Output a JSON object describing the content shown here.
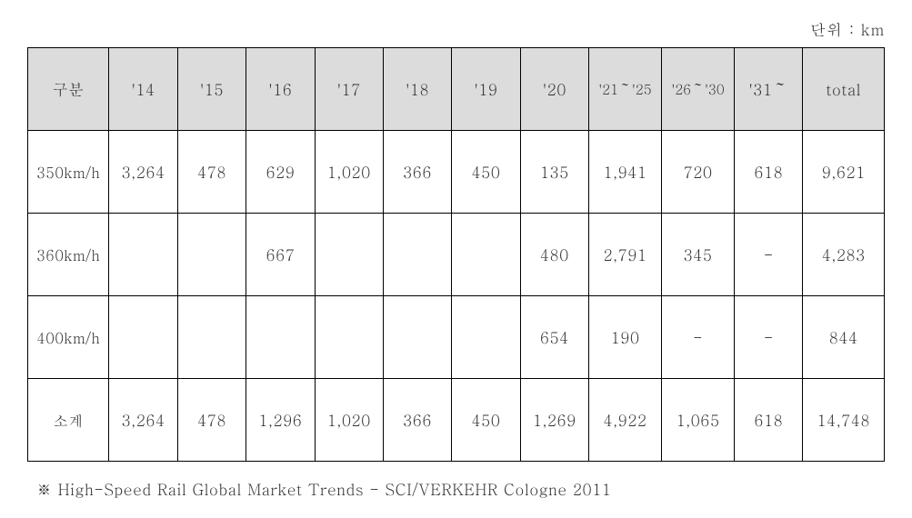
{
  "unit_label": "단위 : km",
  "table": {
    "columns": [
      "구분",
      "'14",
      "'15",
      "'16",
      "'17",
      "'18",
      "'19",
      "'20",
      "'21～'25",
      "'26～'30",
      "'31～",
      "total"
    ],
    "tight_cols": [
      8,
      9
    ],
    "col_widths_pct": [
      9.5,
      8.0,
      8.0,
      8.0,
      8.0,
      8.0,
      8.0,
      8.0,
      8.5,
      8.5,
      8.0,
      9.5
    ],
    "rows": [
      [
        "350km/h",
        "3,264",
        "478",
        "629",
        "1,020",
        "366",
        "450",
        "135",
        "1,941",
        "720",
        "618",
        "9,621"
      ],
      [
        "360km/h",
        "",
        "",
        "667",
        "",
        "",
        "",
        "480",
        "2,791",
        "345",
        "-",
        "4,283"
      ],
      [
        "400km/h",
        "",
        "",
        "",
        "",
        "",
        "",
        "654",
        "190",
        "-",
        "-",
        "844"
      ],
      [
        "소계",
        "3,264",
        "478",
        "1,296",
        "1,020",
        "366",
        "450",
        "1,269",
        "4,922",
        "1,065",
        "618",
        "14,748"
      ]
    ]
  },
  "footnote": "※ High-Speed Rail Global Market Trends - SCI/VERKEHR Cologne 2011",
  "colors": {
    "header_bg": "#dcdcdc",
    "border": "#000000",
    "text": "#333333",
    "background": "#ffffff"
  }
}
